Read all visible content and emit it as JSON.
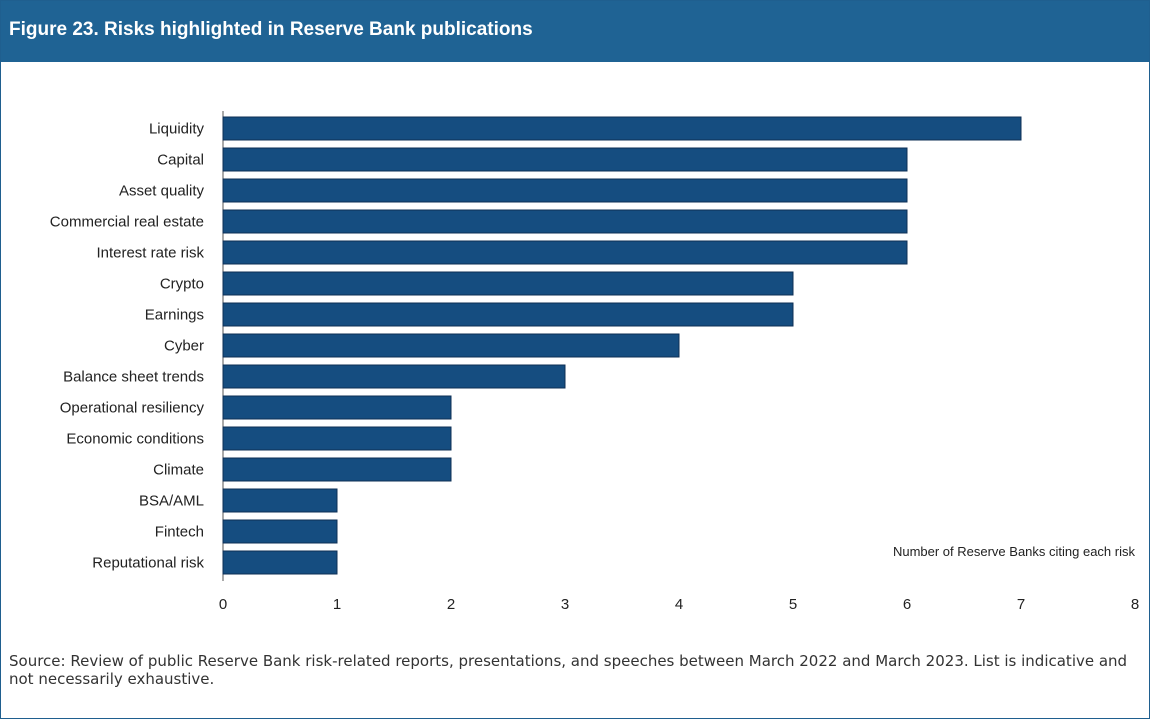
{
  "figure": {
    "title": "Figure 23. Risks highlighted in Reserve Bank publications",
    "source": "Source: Review of public Reserve Bank risk-related reports, presentations, and speeches between March 2022 and March 2023. List is indicative and not necessarily exhaustive."
  },
  "colors": {
    "header_bg": "#1f6394",
    "bar_fill": "#154d80",
    "bar_stroke": "#0d2f55"
  },
  "chart_data": {
    "type": "bar",
    "orientation": "horizontal",
    "title": "",
    "xlabel": "Number of Reserve Banks citing each risk",
    "ylabel": "",
    "xlim": [
      0,
      8
    ],
    "xticks": [
      0,
      1,
      2,
      3,
      4,
      5,
      6,
      7,
      8
    ],
    "grid": false,
    "legend": "none",
    "categories": [
      "Liquidity",
      "Capital",
      "Asset quality",
      "Commercial real estate",
      "Interest rate risk",
      "Crypto",
      "Earnings",
      "Cyber",
      "Balance sheet trends",
      "Operational resiliency",
      "Economic conditions",
      "Climate",
      "BSA/AML",
      "Fintech",
      "Reputational risk"
    ],
    "values": [
      7,
      6,
      6,
      6,
      6,
      5,
      5,
      4,
      3,
      2,
      2,
      2,
      1,
      1,
      1
    ]
  }
}
